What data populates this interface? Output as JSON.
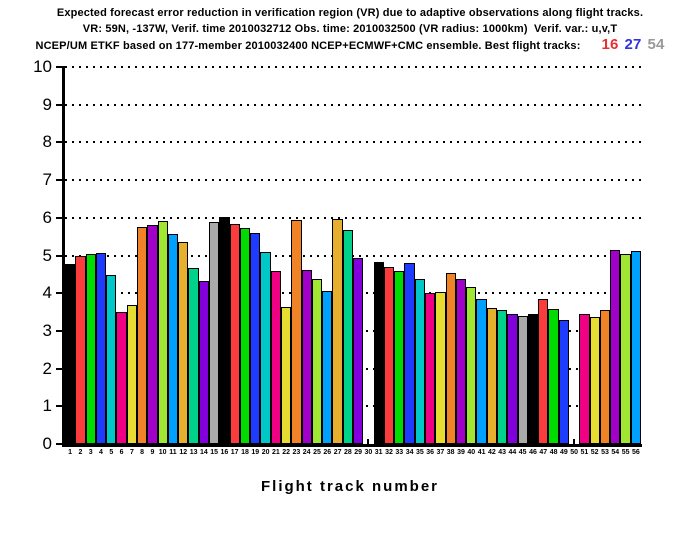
{
  "header": {
    "line1": "Expected forecast error reduction in verification region (VR) due to adaptive observations along flight tracks.",
    "line2": "VR: 59N, -137W, Verif. time 2010032712 Obs. time: 2010032500 (VR radius: 1000km)  Verif. var.: u,v,T",
    "line3_prefix": "NCEP/UM ETKF based on 177-member 2010032400 NCEP+ECMWF+CMC ensemble. Best flight tracks:",
    "best_tracks": [
      {
        "label": "16",
        "color": "#e83030"
      },
      {
        "label": "27",
        "color": "#3232e0"
      },
      {
        "label": "54",
        "color": "#999999"
      }
    ]
  },
  "chart_data": {
    "type": "bar",
    "title": "Expected forecast error reduction in verification region (VR) due to adaptive observations along flight tracks.",
    "subtitle": "VR: 59N, -137W, Verif. time 2010032712 Obs. time: 2010032500 (VR radius: 1000km)  Verif. var.: u,v,T",
    "annotation": "NCEP/UM ETKF based on 177-member 2010032400 NCEP+ECMWF+CMC ensemble. Best flight tracks: 16 27 54",
    "xlabel": "Flight track number",
    "ylabel": "",
    "ylim": [
      0,
      10
    ],
    "yticks": [
      0,
      1,
      2,
      3,
      4,
      5,
      6,
      7,
      8,
      9,
      10
    ],
    "grid": "horizontal dotted lines at each integer, behind bars",
    "legend": "none",
    "categories": [
      1,
      2,
      3,
      4,
      5,
      6,
      7,
      8,
      9,
      10,
      11,
      12,
      13,
      14,
      15,
      16,
      17,
      18,
      19,
      20,
      21,
      22,
      23,
      24,
      25,
      26,
      27,
      28,
      29,
      30,
      31,
      32,
      33,
      34,
      35,
      36,
      37,
      38,
      39,
      40,
      41,
      42,
      43,
      44,
      45,
      46,
      47,
      48,
      49,
      50,
      51,
      52,
      53,
      54,
      55,
      56
    ],
    "values": [
      4.78,
      5.0,
      5.05,
      5.07,
      4.48,
      3.5,
      3.68,
      5.77,
      5.8,
      5.92,
      5.57,
      5.35,
      4.66,
      4.32,
      5.88,
      6.03,
      5.85,
      5.73,
      5.6,
      5.09,
      4.6,
      3.63,
      5.93,
      4.62,
      4.38,
      4.06,
      5.96,
      5.68,
      4.94,
      0,
      4.83,
      4.69,
      4.6,
      4.8,
      4.39,
      4.01,
      4.03,
      4.54,
      4.37,
      4.16,
      3.84,
      3.62,
      3.55,
      3.46,
      3.4,
      3.44,
      3.86,
      3.57,
      3.3,
      0,
      3.44,
      3.38,
      3.55,
      5.16,
      5.04,
      5.13
    ],
    "missing_tracks": [
      30,
      50
    ],
    "palette": [
      "#000000",
      "#fa3c3c",
      "#00dc00",
      "#1e3cff",
      "#00c8c8",
      "#f00082",
      "#e6dc32",
      "#f08228",
      "#a000c8",
      "#a0e632",
      "#00a0ff",
      "#e6af2d",
      "#00d28c",
      "#8200dc",
      "#aaaaaa"
    ],
    "palette_rule": "bar fill color = palette[(track number - 1) mod 15], black outline on every bar"
  }
}
